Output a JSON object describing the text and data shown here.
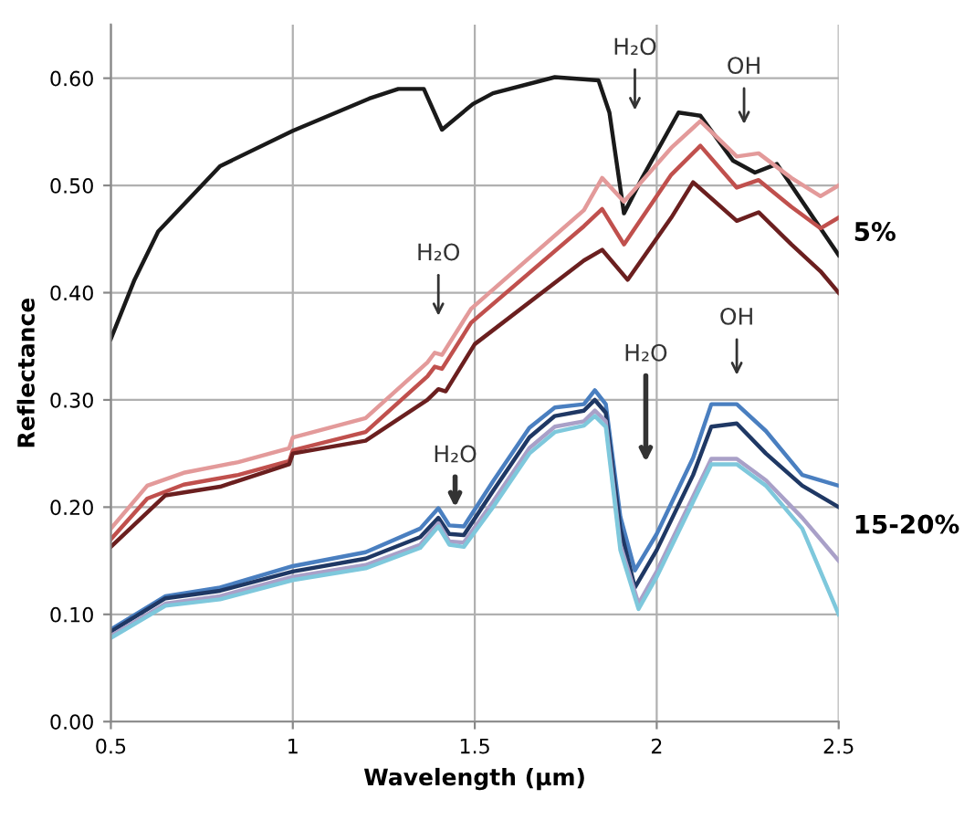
{
  "chart_data": {
    "type": "line",
    "xlabel": "Wavelength (µm)",
    "ylabel": "Reflectance",
    "xlim": [
      0.5,
      2.5
    ],
    "ylim": [
      0,
      0.65
    ],
    "xticks": [
      0.5,
      1,
      1.5,
      2,
      2.5
    ],
    "yticks": [
      {
        "value": 0,
        "label": "0.00"
      },
      {
        "value": 0.1,
        "label": "0.10"
      },
      {
        "value": 0.2,
        "label": "0.20"
      },
      {
        "value": 0.3,
        "label": "0.30"
      },
      {
        "value": 0.4,
        "label": "0.40"
      },
      {
        "value": 0.5,
        "label": "0.50"
      },
      {
        "value": 0.6,
        "label": "0.60"
      }
    ],
    "grid": true,
    "marker": "none",
    "line_style": "solid",
    "series": [
      {
        "color": "#1a1a1a",
        "x": [
          0.5,
          0.565,
          0.63,
          0.8,
          1.0,
          1.21,
          1.29,
          1.36,
          1.41,
          1.495,
          1.55,
          1.72,
          1.84,
          1.87,
          1.91,
          1.96,
          2.06,
          2.12,
          2.21,
          2.27,
          2.33,
          2.5
        ],
        "values": [
          0.357,
          0.412,
          0.457,
          0.518,
          0.551,
          0.581,
          0.59,
          0.59,
          0.552,
          0.576,
          0.586,
          0.601,
          0.598,
          0.568,
          0.474,
          0.507,
          0.568,
          0.565,
          0.523,
          0.512,
          0.52,
          0.435
        ]
      },
      {
        "color": "#e39a9a",
        "x": [
          0.5,
          0.6,
          0.7,
          0.85,
          0.99,
          1.0,
          1.2,
          1.37,
          1.39,
          1.41,
          1.49,
          1.8,
          1.85,
          1.91,
          2.04,
          2.12,
          2.22,
          2.28,
          2.37,
          2.45,
          2.5
        ],
        "values": [
          0.18,
          0.22,
          0.232,
          0.242,
          0.255,
          0.265,
          0.283,
          0.335,
          0.344,
          0.342,
          0.385,
          0.477,
          0.507,
          0.485,
          0.535,
          0.56,
          0.527,
          0.53,
          0.507,
          0.49,
          0.5
        ]
      },
      {
        "color": "#c0504d",
        "x": [
          0.5,
          0.6,
          0.7,
          0.85,
          0.99,
          1.0,
          1.2,
          1.37,
          1.39,
          1.41,
          1.49,
          1.8,
          1.85,
          1.91,
          2.04,
          2.12,
          2.22,
          2.28,
          2.37,
          2.45,
          2.5
        ],
        "values": [
          0.17,
          0.208,
          0.221,
          0.23,
          0.243,
          0.253,
          0.27,
          0.322,
          0.331,
          0.329,
          0.372,
          0.462,
          0.478,
          0.445,
          0.51,
          0.537,
          0.498,
          0.505,
          0.48,
          0.46,
          0.47
        ]
      },
      {
        "color": "#6b1f1f",
        "x": [
          0.5,
          0.65,
          0.8,
          0.99,
          1.0,
          1.2,
          1.37,
          1.4,
          1.42,
          1.5,
          1.8,
          1.85,
          1.92,
          2.04,
          2.1,
          2.22,
          2.28,
          2.37,
          2.45,
          2.5
        ],
        "values": [
          0.163,
          0.211,
          0.219,
          0.24,
          0.25,
          0.262,
          0.3,
          0.31,
          0.308,
          0.352,
          0.43,
          0.44,
          0.412,
          0.47,
          0.503,
          0.467,
          0.475,
          0.445,
          0.42,
          0.4
        ]
      },
      {
        "color": "#4a7fc0",
        "x": [
          0.5,
          0.65,
          0.8,
          1.0,
          1.2,
          1.35,
          1.4,
          1.43,
          1.47,
          1.55,
          1.65,
          1.72,
          1.8,
          1.83,
          1.86,
          1.9,
          1.94,
          2.0,
          2.1,
          2.15,
          2.22,
          2.3,
          2.4,
          2.5
        ],
        "values": [
          0.086,
          0.117,
          0.125,
          0.145,
          0.158,
          0.18,
          0.199,
          0.183,
          0.182,
          0.224,
          0.274,
          0.293,
          0.296,
          0.309,
          0.296,
          0.191,
          0.141,
          0.175,
          0.246,
          0.296,
          0.296,
          0.271,
          0.23,
          0.22
        ]
      },
      {
        "color": "#1f3864",
        "x": [
          0.5,
          0.65,
          0.8,
          1.0,
          1.2,
          1.35,
          1.4,
          1.43,
          1.47,
          1.55,
          1.65,
          1.72,
          1.8,
          1.83,
          1.86,
          1.9,
          1.94,
          2.0,
          2.1,
          2.15,
          2.22,
          2.3,
          2.4,
          2.5
        ],
        "values": [
          0.084,
          0.115,
          0.122,
          0.14,
          0.152,
          0.172,
          0.19,
          0.175,
          0.174,
          0.215,
          0.265,
          0.285,
          0.29,
          0.3,
          0.288,
          0.18,
          0.125,
          0.16,
          0.23,
          0.275,
          0.278,
          0.25,
          0.22,
          0.2
        ]
      },
      {
        "color": "#a9a0c8",
        "x": [
          0.5,
          0.65,
          0.8,
          1.0,
          1.2,
          1.35,
          1.4,
          1.43,
          1.47,
          1.55,
          1.65,
          1.72,
          1.8,
          1.83,
          1.86,
          1.9,
          1.95,
          2.0,
          2.1,
          2.15,
          2.22,
          2.3,
          2.4,
          2.5
        ],
        "values": [
          0.08,
          0.11,
          0.117,
          0.135,
          0.146,
          0.165,
          0.185,
          0.168,
          0.167,
          0.205,
          0.255,
          0.275,
          0.28,
          0.29,
          0.28,
          0.165,
          0.11,
          0.14,
          0.21,
          0.245,
          0.245,
          0.225,
          0.19,
          0.15
        ]
      },
      {
        "color": "#7ec8dc",
        "x": [
          0.5,
          0.65,
          0.8,
          1.0,
          1.2,
          1.35,
          1.4,
          1.43,
          1.47,
          1.55,
          1.65,
          1.72,
          1.8,
          1.83,
          1.86,
          1.9,
          1.95,
          2.0,
          2.1,
          2.15,
          2.22,
          2.3,
          2.4,
          2.5
        ],
        "values": [
          0.078,
          0.108,
          0.114,
          0.132,
          0.143,
          0.162,
          0.182,
          0.165,
          0.163,
          0.2,
          0.25,
          0.27,
          0.276,
          0.285,
          0.275,
          0.16,
          0.105,
          0.135,
          0.205,
          0.24,
          0.24,
          0.22,
          0.18,
          0.1
        ]
      }
    ],
    "annotations": [
      "H₂O",
      "OH",
      "H₂O",
      "H₂O",
      "H₂O",
      "OH",
      "5%",
      "15-20%"
    ]
  }
}
